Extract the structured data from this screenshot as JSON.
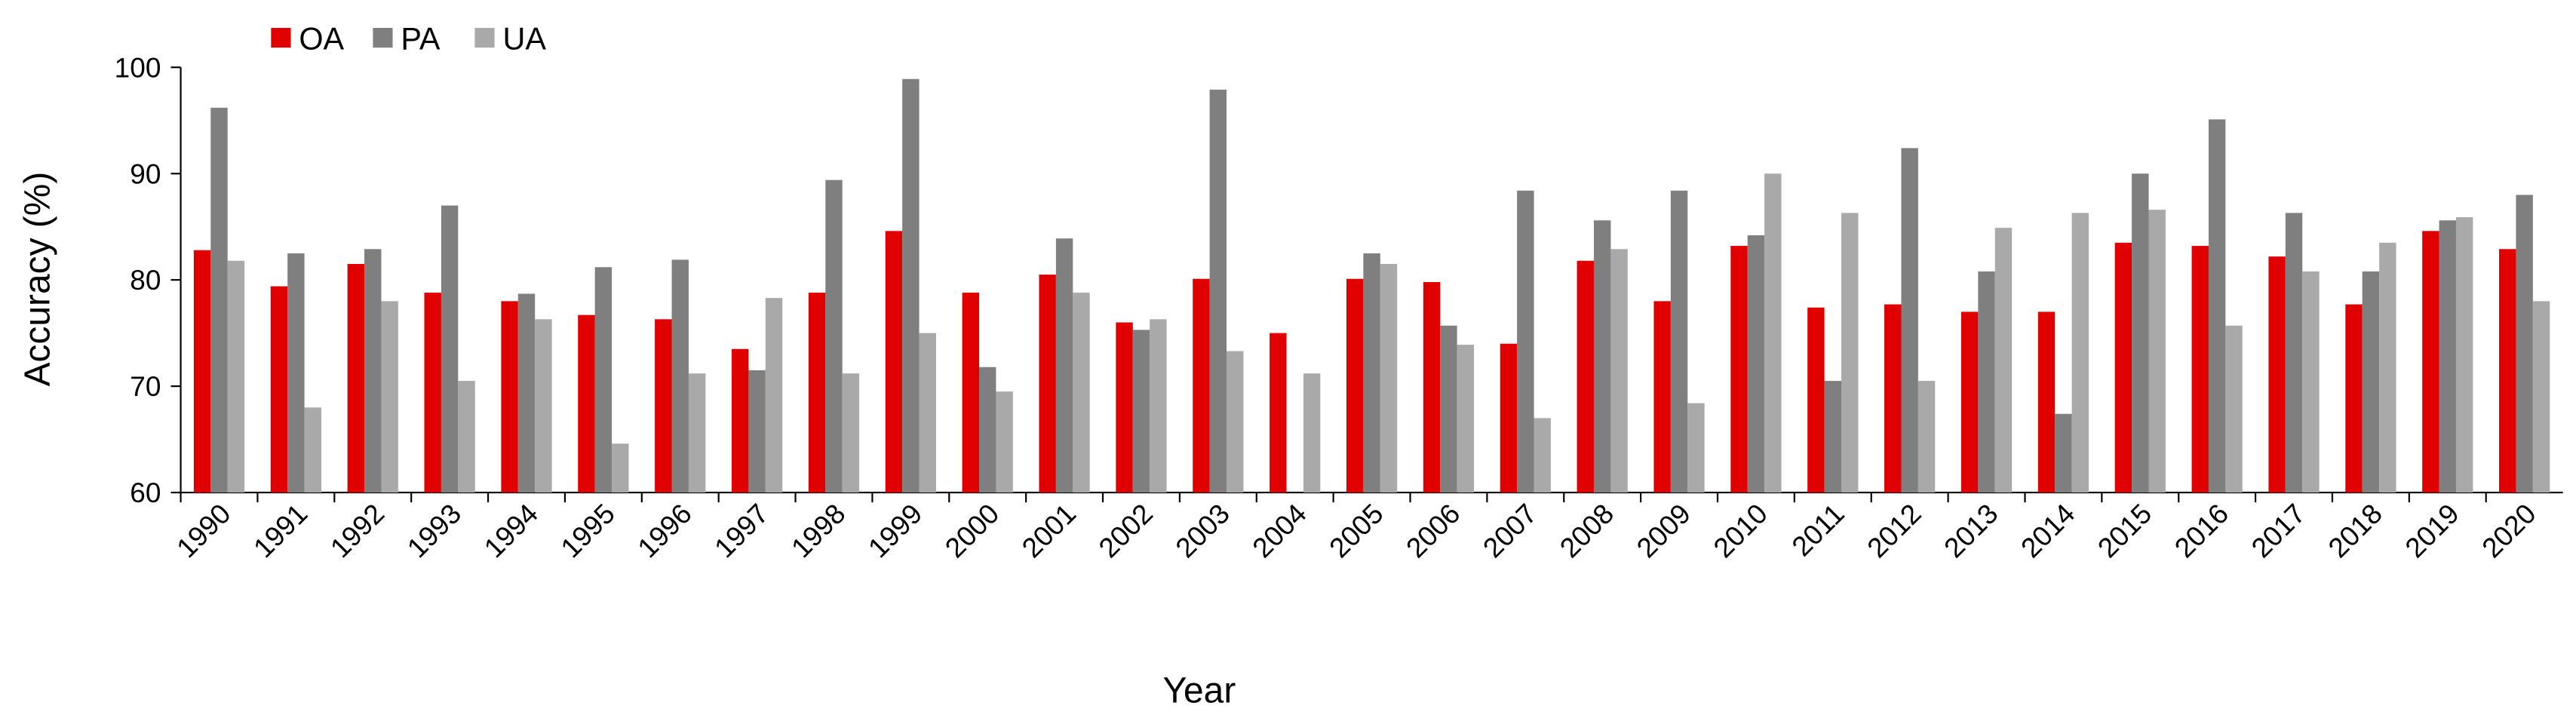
{
  "chart_data": {
    "type": "bar",
    "x_label": "Year",
    "y_label": "Accuracy (%)",
    "categories": [
      "1990",
      "1991",
      "1992",
      "1993",
      "1994",
      "1995",
      "1996",
      "1997",
      "1998",
      "1999",
      "2000",
      "2001",
      "2002",
      "2003",
      "2004",
      "2005",
      "2006",
      "2007",
      "2008",
      "2009",
      "2010",
      "2011",
      "2012",
      "2013",
      "2014",
      "2015",
      "2016",
      "2017",
      "2018",
      "2019",
      "2020"
    ],
    "series": [
      {
        "name": "OA",
        "color": "#e00000",
        "values": [
          82.8,
          79.4,
          81.5,
          78.8,
          78,
          76.7,
          76.3,
          73.5,
          78.8,
          84.6,
          78.8,
          80.5,
          76,
          80.1,
          75,
          80.1,
          79.8,
          74,
          81.8,
          78,
          83.2,
          77.4,
          77.7,
          77,
          77,
          83.5,
          83.2,
          82.2,
          77.7,
          84.6,
          82.9
        ]
      },
      {
        "name": "PA",
        "color": "#7f7f7f",
        "values": [
          96.2,
          82.5,
          82.9,
          87,
          78.7,
          81.2,
          81.9,
          71.5,
          89.4,
          98.9,
          71.8,
          83.9,
          75.3,
          97.9,
          null,
          82.5,
          75.7,
          88.4,
          85.6,
          88.4,
          84.2,
          70.5,
          92.4,
          80.8,
          67.4,
          90,
          95.1,
          86.3,
          80.8,
          85.6,
          88
        ]
      },
      {
        "name": "UA",
        "color": "#a9a9a9",
        "values": [
          81.8,
          68,
          78,
          70.5,
          76.3,
          64.6,
          71.2,
          78.3,
          71.2,
          75,
          69.5,
          78.8,
          76.3,
          73.3,
          71.2,
          81.5,
          73.9,
          67,
          82.9,
          68.4,
          90,
          86.3,
          70.5,
          84.9,
          86.3,
          86.6,
          75.7,
          80.8,
          83.5,
          85.9,
          78
        ]
      }
    ],
    "ylim": [
      60,
      100
    ],
    "yticks": [
      60,
      70,
      80,
      90,
      100
    ],
    "legend": "top-left"
  }
}
